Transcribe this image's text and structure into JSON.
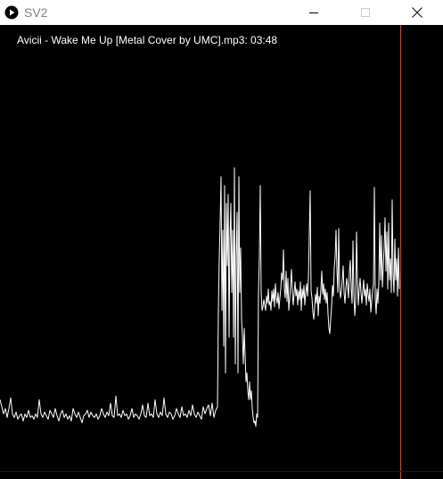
{
  "window": {
    "title": "SV2",
    "icon": "play-circle-icon"
  },
  "controls": {
    "minimize_icon": "minimize-icon",
    "maximize_icon": "maximize-icon",
    "close_icon": "close-icon"
  },
  "track": {
    "label": "Avicii - Wake Me Up [Metal Cover by UMC].mp3: 03:48"
  },
  "colors": {
    "waveform": "#ffffff",
    "playhead": "#e03a1e",
    "background": "#000000"
  }
}
